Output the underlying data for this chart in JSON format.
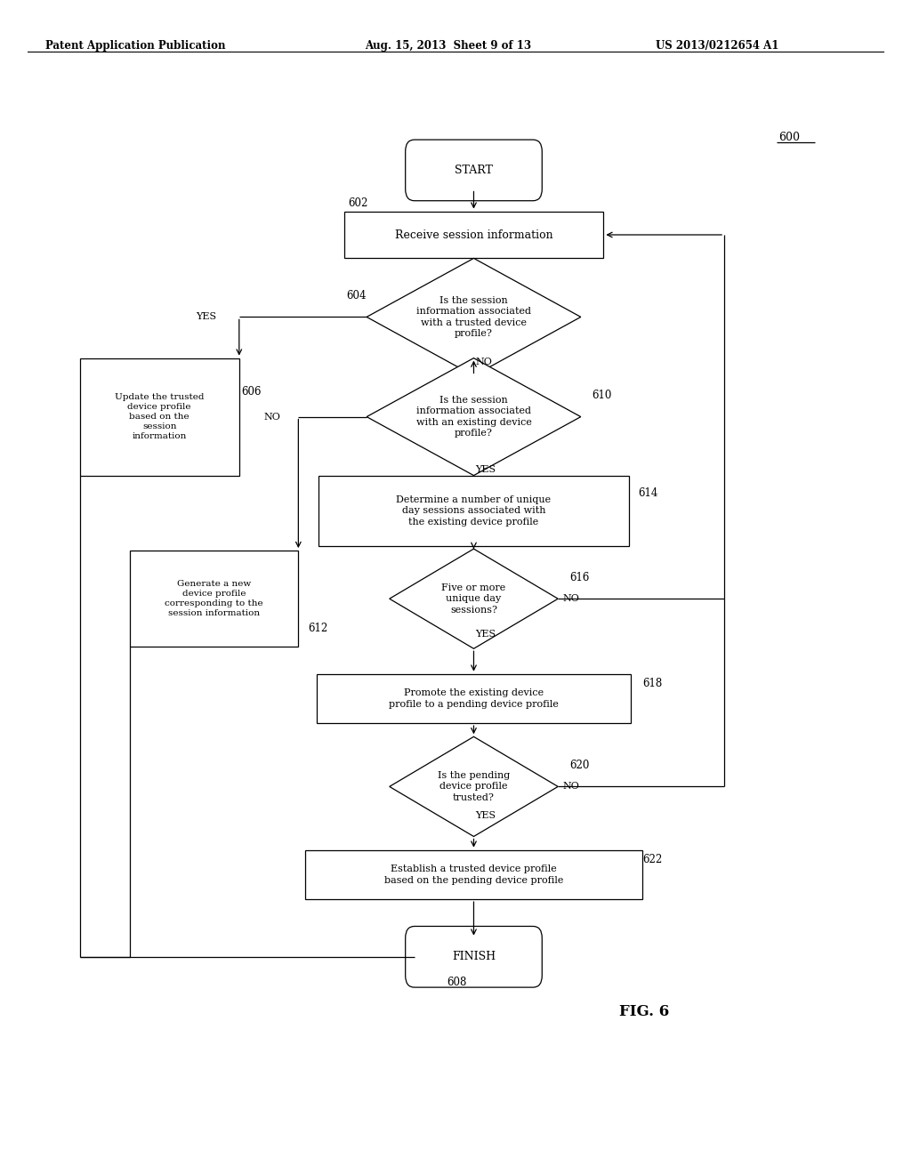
{
  "title_left": "Patent Application Publication",
  "title_mid": "Aug. 15, 2013  Sheet 9 of 13",
  "title_right": "US 2013/0212654 A1",
  "fig_label": "FIG. 6",
  "diagram_label": "600",
  "background": "#ffffff",
  "text_color": "#000000",
  "line_color": "#000000"
}
